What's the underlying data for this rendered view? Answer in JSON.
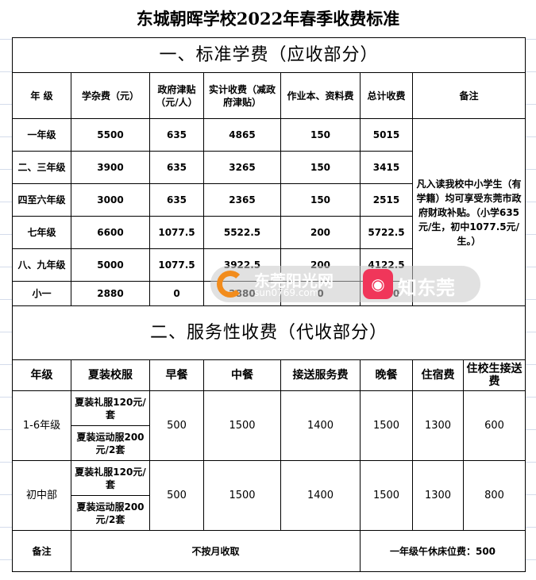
{
  "title": "东城朝晖学校2022年春季收费标准",
  "section1": {
    "heading": "一、标准学费（应收部分）",
    "headers": [
      "年 级",
      "学杂费（元）",
      "政府津贴（元/人）",
      "实计收费（减政府津贴）",
      "作业本、资料费",
      "总计收费",
      "备注"
    ],
    "rows": [
      [
        "一年级",
        "5500",
        "635",
        "4865",
        "150",
        "5015"
      ],
      [
        "二、三年级",
        "3900",
        "635",
        "3265",
        "150",
        "3415"
      ],
      [
        "四至六年级",
        "3000",
        "635",
        "2365",
        "150",
        "2515"
      ],
      [
        "七年级",
        "6600",
        "1077.5",
        "5522.5",
        "200",
        "5722.5"
      ],
      [
        "八、九年级",
        "5000",
        "1077.5",
        "3922.5",
        "200",
        "4122.5"
      ],
      [
        "小一",
        "2880",
        "0",
        "2880",
        "0",
        "2880"
      ]
    ],
    "note": "凡入读我校中小学生（有学籍）均可享受东莞市政府财政补贴。（小学635元/生，初中1077.5元/生。）"
  },
  "section2": {
    "heading": "二、服务性收费（代收部分）",
    "headers": [
      "年级",
      "夏装校服",
      "早餐",
      "中餐",
      "接送服务费",
      "晚餐",
      "住宿费",
      "住校生接送费"
    ],
    "groups": [
      {
        "grade": "1-6年级",
        "uniforms": [
          "夏装礼服120元/套",
          "夏装运动服200元/2套"
        ],
        "values": [
          "500",
          "1500",
          "1400",
          "1500",
          "1300",
          "600"
        ]
      },
      {
        "grade": "初中部",
        "uniforms": [
          "夏装礼服120元/套",
          "夏装运动服200元/2套"
        ],
        "values": [
          "500",
          "1500",
          "1400",
          "1500",
          "1300",
          "800"
        ]
      }
    ],
    "remark_label": "备注",
    "remark_left": "不按月收取",
    "remark_right": "一年级午休床位费：500"
  },
  "watermark": {
    "site1": "东莞阳光网",
    "site1_url": "sun0769.com",
    "site2": "知东莞"
  }
}
